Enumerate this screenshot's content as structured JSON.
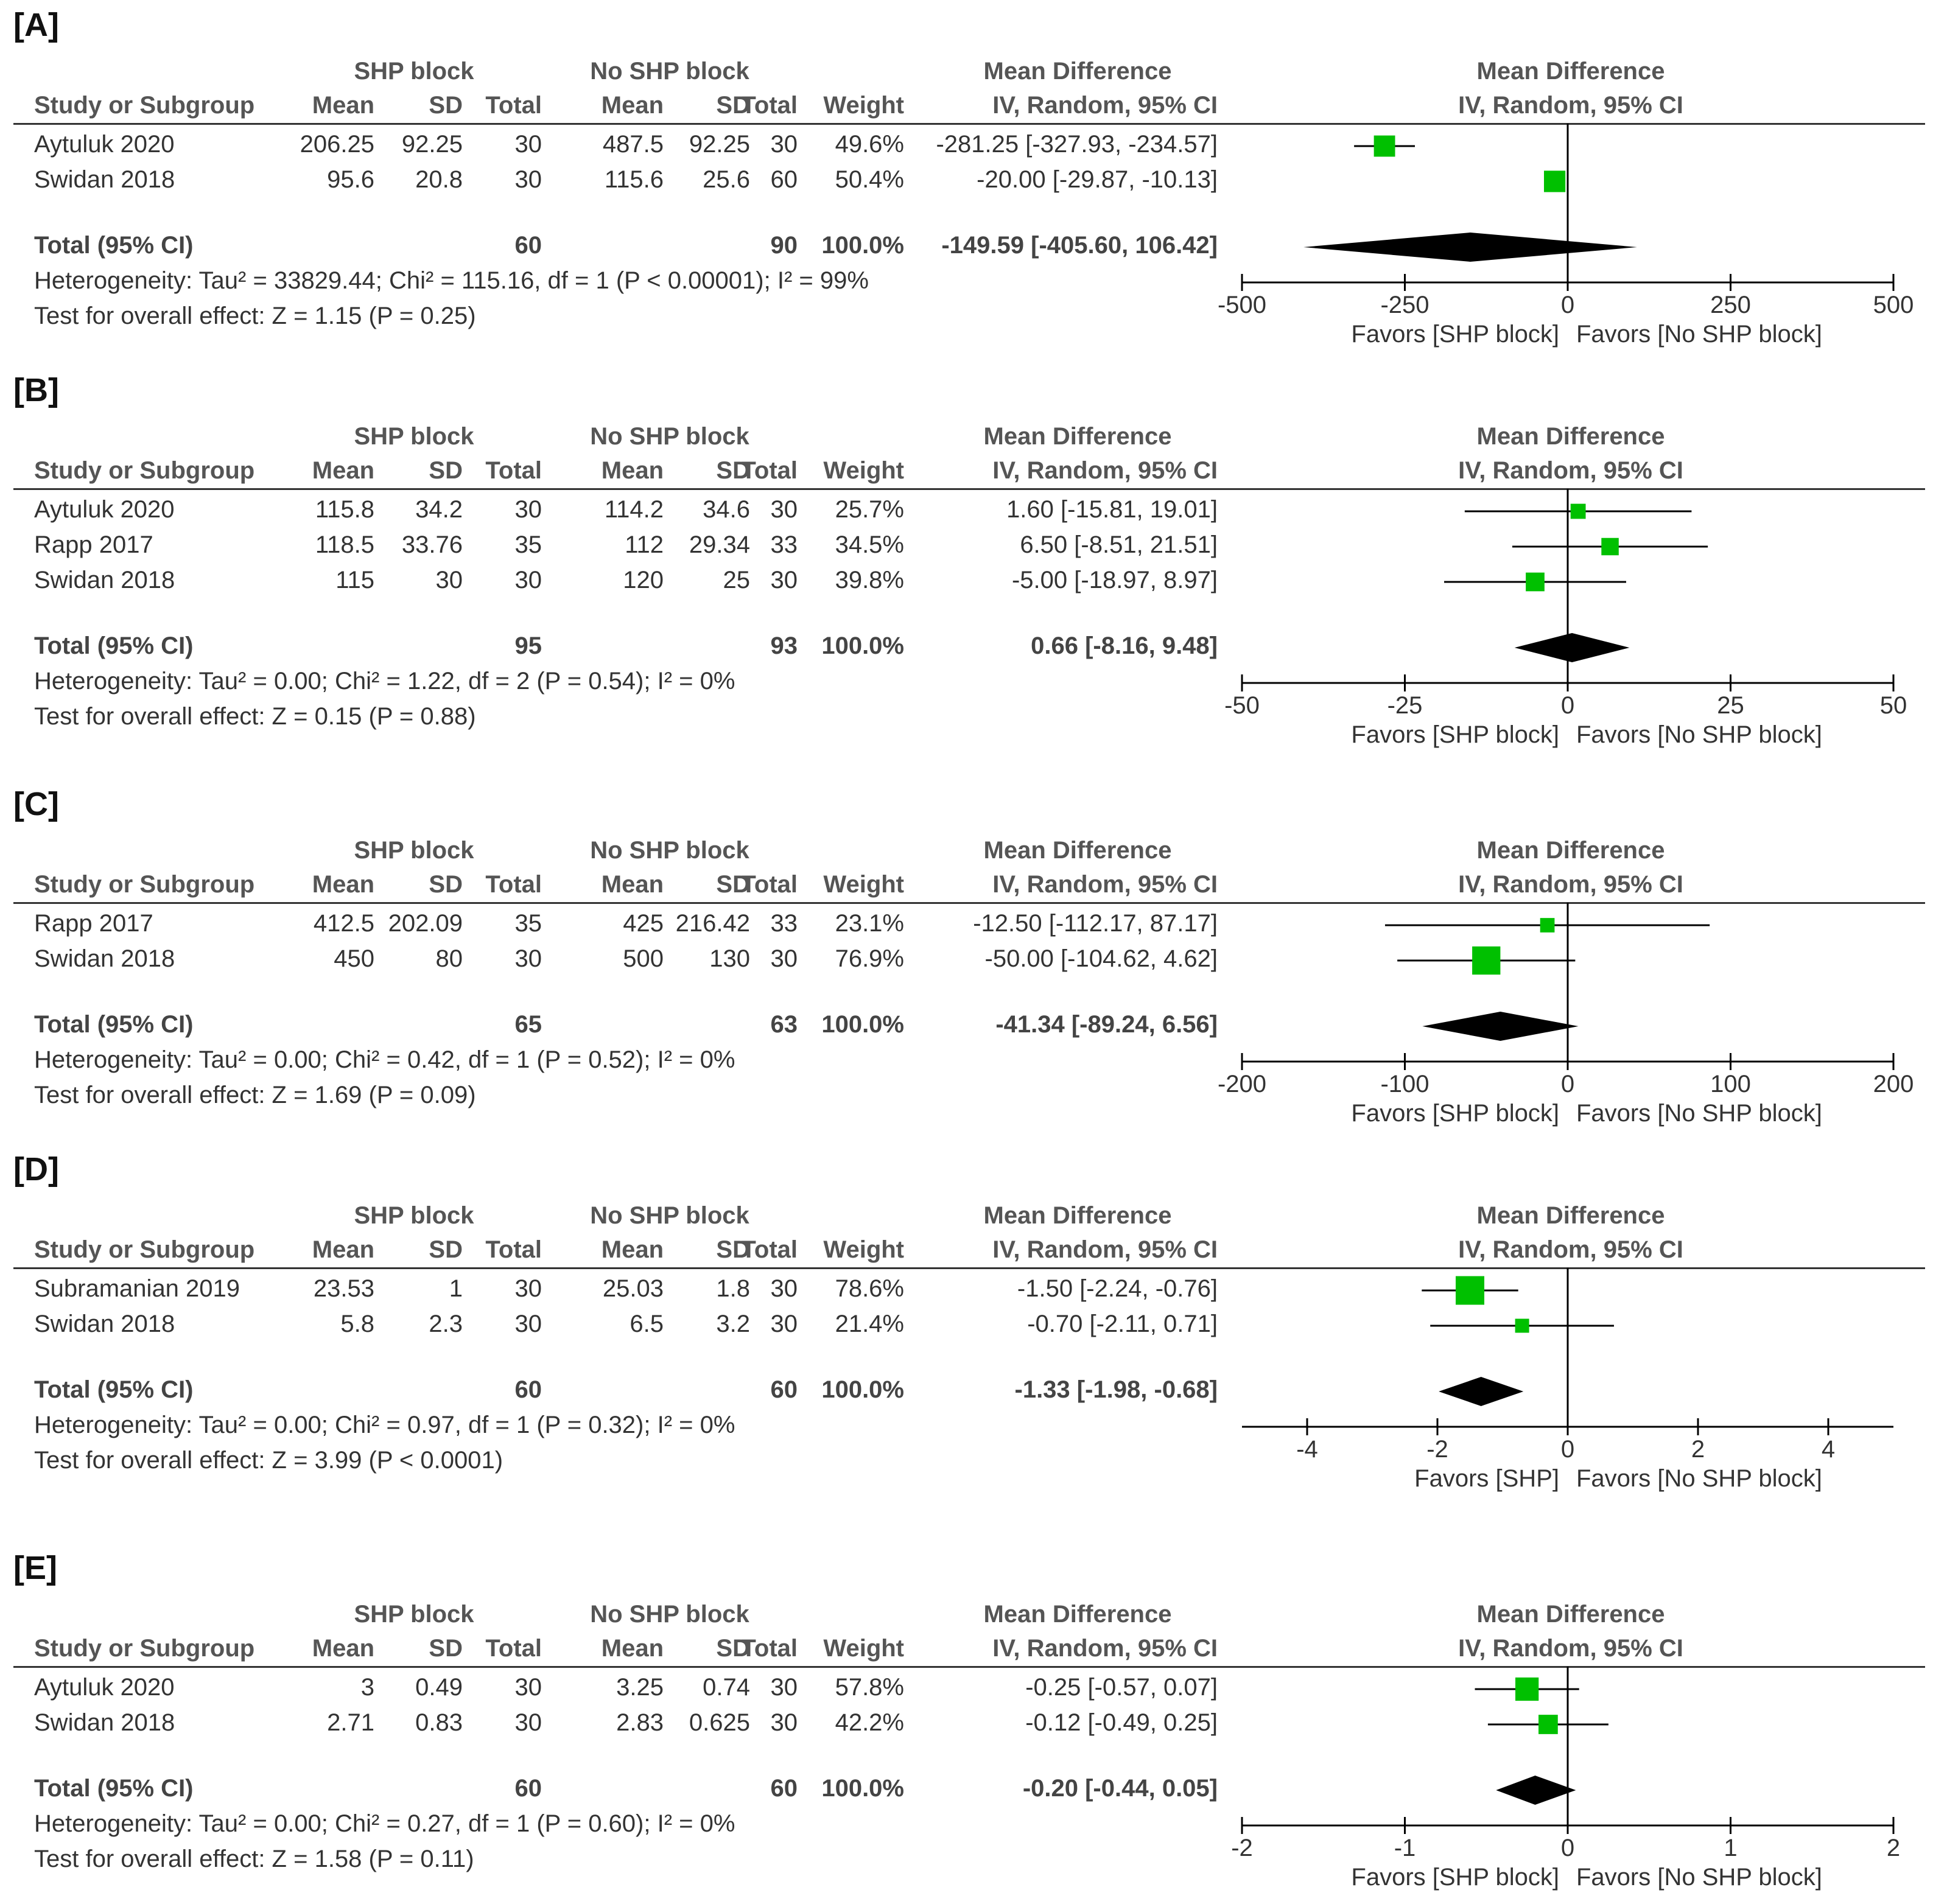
{
  "headers": {
    "group1": "SHP block",
    "group2": "No SHP block",
    "md": "Mean Difference",
    "md_sub": "IV, Random, 95% CI",
    "study": "Study or Subgroup",
    "mean": "Mean",
    "sd": "SD",
    "total": "Total",
    "weight": "Weight"
  },
  "colors": {
    "square": "#00c000",
    "line": "#000000",
    "diamond": "#000000"
  },
  "chart_data": [
    {
      "type": "forest",
      "label": "[A]",
      "studies": [
        {
          "name": "Aytuluk 2020",
          "m1": "206.25",
          "sd1": "92.25",
          "n1": "30",
          "m2": "487.5",
          "sd2": "92.25",
          "n2": "30",
          "weight": "49.6%",
          "ci_text": "-281.25 [-327.93, -234.57]",
          "md": -281.25,
          "lo": -327.93,
          "hi": -234.57
        },
        {
          "name": "Swidan 2018",
          "m1": "95.6",
          "sd1": "20.8",
          "n1": "30",
          "m2": "115.6",
          "sd2": "25.6",
          "n2": "60",
          "weight": "50.4%",
          "ci_text": "-20.00 [-29.87, -10.13]",
          "md": -20.0,
          "lo": -29.87,
          "hi": -10.13
        }
      ],
      "total": {
        "name": "Total (95% CI)",
        "n1": "60",
        "n2": "90",
        "weight": "100.0%",
        "ci_text": "-149.59 [-405.60, 106.42]",
        "md": -149.59,
        "lo": -405.6,
        "hi": 106.42
      },
      "heterogeneity": "Heterogeneity: Tau² = 33829.44; Chi² = 115.16, df = 1 (P < 0.00001); I² = 99%",
      "overall": "Test for overall effect: Z = 1.15 (P = 0.25)",
      "xlim": [
        -500,
        500
      ],
      "ticks": [
        -500,
        -250,
        0,
        250,
        500
      ],
      "tick_labels": [
        "-500",
        "-250",
        "0",
        "250",
        "500"
      ],
      "favors_left": "Favors [SHP block]",
      "favors_right": "Favors [No SHP block]"
    },
    {
      "type": "forest",
      "label": "[B]",
      "studies": [
        {
          "name": "Aytuluk 2020",
          "m1": "115.8",
          "sd1": "34.2",
          "n1": "30",
          "m2": "114.2",
          "sd2": "34.6",
          "n2": "30",
          "weight": "25.7%",
          "ci_text": "1.60 [-15.81, 19.01]",
          "md": 1.6,
          "lo": -15.81,
          "hi": 19.01
        },
        {
          "name": "Rapp 2017",
          "m1": "118.5",
          "sd1": "33.76",
          "n1": "35",
          "m2": "112",
          "sd2": "29.34",
          "n2": "33",
          "weight": "34.5%",
          "ci_text": "6.50 [-8.51, 21.51]",
          "md": 6.5,
          "lo": -8.51,
          "hi": 21.51
        },
        {
          "name": "Swidan 2018",
          "m1": "115",
          "sd1": "30",
          "n1": "30",
          "m2": "120",
          "sd2": "25",
          "n2": "30",
          "weight": "39.8%",
          "ci_text": "-5.00 [-18.97, 8.97]",
          "md": -5.0,
          "lo": -18.97,
          "hi": 8.97
        }
      ],
      "total": {
        "name": "Total (95% CI)",
        "n1": "95",
        "n2": "93",
        "weight": "100.0%",
        "ci_text": "0.66 [-8.16, 9.48]",
        "md": 0.66,
        "lo": -8.16,
        "hi": 9.48
      },
      "heterogeneity": "Heterogeneity: Tau² = 0.00; Chi² = 1.22, df = 2 (P = 0.54); I² = 0%",
      "overall": "Test for overall effect: Z = 0.15 (P = 0.88)",
      "xlim": [
        -50,
        50
      ],
      "ticks": [
        -50,
        -25,
        0,
        25,
        50
      ],
      "tick_labels": [
        "-50",
        "-25",
        "0",
        "25",
        "50"
      ],
      "favors_left": "Favors [SHP block]",
      "favors_right": "Favors [No SHP block]"
    },
    {
      "type": "forest",
      "label": "[C]",
      "studies": [
        {
          "name": "Rapp 2017",
          "m1": "412.5",
          "sd1": "202.09",
          "n1": "35",
          "m2": "425",
          "sd2": "216.42",
          "n2": "33",
          "weight": "23.1%",
          "ci_text": "-12.50 [-112.17, 87.17]",
          "md": -12.5,
          "lo": -112.17,
          "hi": 87.17
        },
        {
          "name": "Swidan 2018",
          "m1": "450",
          "sd1": "80",
          "n1": "30",
          "m2": "500",
          "sd2": "130",
          "n2": "30",
          "weight": "76.9%",
          "ci_text": "-50.00 [-104.62, 4.62]",
          "md": -50.0,
          "lo": -104.62,
          "hi": 4.62
        }
      ],
      "total": {
        "name": "Total (95% CI)",
        "n1": "65",
        "n2": "63",
        "weight": "100.0%",
        "ci_text": "-41.34 [-89.24, 6.56]",
        "md": -41.34,
        "lo": -89.24,
        "hi": 6.56
      },
      "heterogeneity": "Heterogeneity: Tau² = 0.00; Chi² = 0.42, df = 1 (P = 0.52); I² = 0%",
      "overall": "Test for overall effect: Z = 1.69 (P = 0.09)",
      "xlim": [
        -200,
        200
      ],
      "ticks": [
        -200,
        -100,
        0,
        100,
        200
      ],
      "tick_labels": [
        "-200",
        "-100",
        "0",
        "100",
        "200"
      ],
      "favors_left": "Favors [SHP block]",
      "favors_right": "Favors [No SHP block]"
    },
    {
      "type": "forest",
      "label": "[D]",
      "studies": [
        {
          "name": "Subramanian 2019",
          "m1": "23.53",
          "sd1": "1",
          "n1": "30",
          "m2": "25.03",
          "sd2": "1.8",
          "n2": "30",
          "weight": "78.6%",
          "ci_text": "-1.50 [-2.24, -0.76]",
          "md": -1.5,
          "lo": -2.24,
          "hi": -0.76
        },
        {
          "name": "Swidan 2018",
          "m1": "5.8",
          "sd1": "2.3",
          "n1": "30",
          "m2": "6.5",
          "sd2": "3.2",
          "n2": "30",
          "weight": "21.4%",
          "ci_text": "-0.70 [-2.11, 0.71]",
          "md": -0.7,
          "lo": -2.11,
          "hi": 0.71
        }
      ],
      "total": {
        "name": "Total (95% CI)",
        "n1": "60",
        "n2": "60",
        "weight": "100.0%",
        "ci_text": "-1.33 [-1.98, -0.68]",
        "md": -1.33,
        "lo": -1.98,
        "hi": -0.68
      },
      "heterogeneity": "Heterogeneity: Tau² = 0.00; Chi² = 0.97, df = 1 (P = 0.32); I² = 0%",
      "overall": "Test for overall effect: Z = 3.99 (P < 0.0001)",
      "xlim": [
        -5,
        5
      ],
      "ticks": [
        -4,
        -2,
        0,
        2,
        4
      ],
      "tick_labels": [
        "-4",
        "-2",
        "0",
        "2",
        "4"
      ],
      "favors_left": "Favors [SHP]",
      "favors_right": "Favors [No SHP block]"
    },
    {
      "type": "forest",
      "label": "[E]",
      "studies": [
        {
          "name": "Aytuluk 2020",
          "m1": "3",
          "sd1": "0.49",
          "n1": "30",
          "m2": "3.25",
          "sd2": "0.74",
          "n2": "30",
          "weight": "57.8%",
          "ci_text": "-0.25 [-0.57, 0.07]",
          "md": -0.25,
          "lo": -0.57,
          "hi": 0.07
        },
        {
          "name": "Swidan 2018",
          "m1": "2.71",
          "sd1": "0.83",
          "n1": "30",
          "m2": "2.83",
          "sd2": "0.625",
          "n2": "30",
          "weight": "42.2%",
          "ci_text": "-0.12 [-0.49, 0.25]",
          "md": -0.12,
          "lo": -0.49,
          "hi": 0.25
        }
      ],
      "total": {
        "name": "Total (95% CI)",
        "n1": "60",
        "n2": "60",
        "weight": "100.0%",
        "ci_text": "-0.20 [-0.44, 0.05]",
        "md": -0.2,
        "lo": -0.44,
        "hi": 0.05
      },
      "heterogeneity": "Heterogeneity: Tau² = 0.00; Chi² = 0.27, df = 1 (P = 0.60); I² = 0%",
      "overall": "Test for overall effect: Z = 1.58 (P = 0.11)",
      "xlim": [
        -2,
        2
      ],
      "ticks": [
        -2,
        -1,
        0,
        1,
        2
      ],
      "tick_labels": [
        "-2",
        "-1",
        "0",
        "1",
        "2"
      ],
      "favors_left": "Favors [SHP block]",
      "favors_right": "Favors [No SHP block]"
    }
  ]
}
